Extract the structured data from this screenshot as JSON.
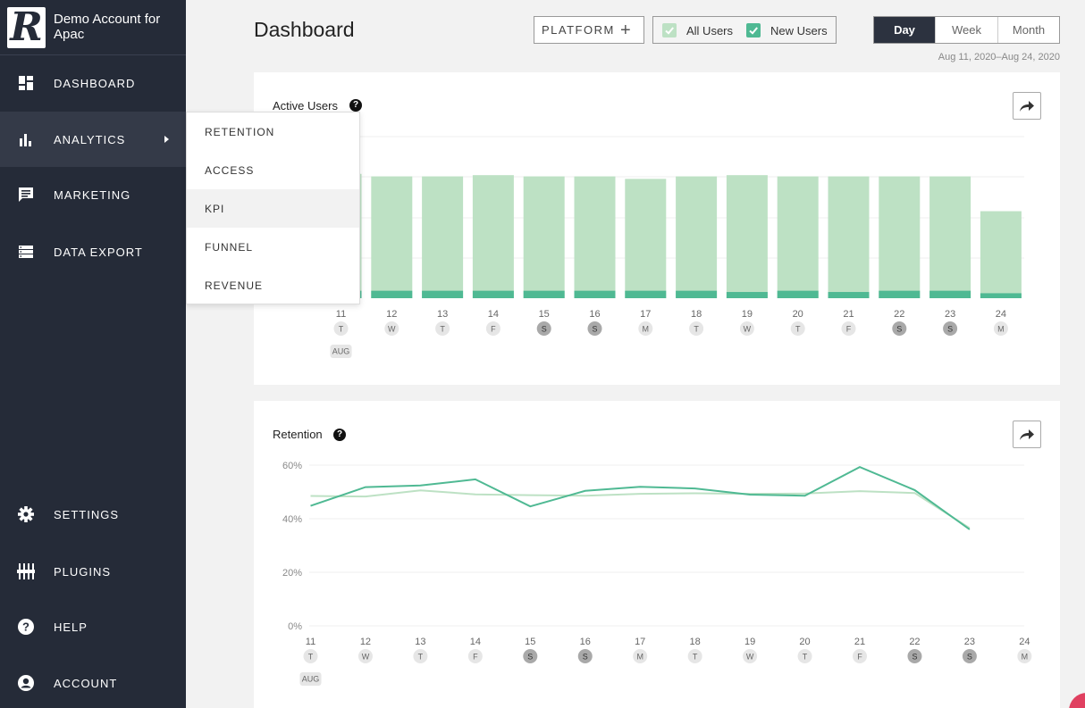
{
  "app": {
    "account_name": "Demo Account for Apac",
    "logo_letter": "R"
  },
  "sidebar": {
    "items": [
      {
        "label": "DASHBOARD",
        "icon": "dashboard-grid-icon"
      },
      {
        "label": "ANALYTICS",
        "icon": "bar-chart-icon",
        "active": true
      },
      {
        "label": "MARKETING",
        "icon": "message-icon"
      },
      {
        "label": "DATA EXPORT",
        "icon": "list-stack-icon"
      },
      {
        "label": "SETTINGS",
        "icon": "gear-icon"
      },
      {
        "label": "PLUGINS",
        "icon": "sliders-icon"
      },
      {
        "label": "HELP",
        "icon": "question-circle-icon"
      },
      {
        "label": "ACCOUNT",
        "icon": "user-circle-icon"
      }
    ]
  },
  "submenu": {
    "items": [
      "RETENTION",
      "ACCESS",
      "KPI",
      "FUNNEL",
      "REVENUE"
    ],
    "hovered": "KPI"
  },
  "header": {
    "title": "Dashboard",
    "platform_label": "PLATFORM",
    "legend": {
      "all_users": "All Users",
      "new_users": "New Users"
    },
    "range_options": [
      "Day",
      "Week",
      "Month"
    ],
    "range_selected": "Day",
    "date_range": "Aug 11, 2020–Aug 24, 2020"
  },
  "colors": {
    "sidebar_bg": "#252b38",
    "all_users": "#bde1c4",
    "new_users": "#4fb993",
    "weekend_pill": "#a9a9a9",
    "weekday_pill": "#e6e6e6"
  },
  "x_axis": {
    "days": [
      "11",
      "12",
      "13",
      "14",
      "15",
      "16",
      "17",
      "18",
      "19",
      "20",
      "21",
      "22",
      "23",
      "24"
    ],
    "weekdays": [
      "T",
      "W",
      "T",
      "F",
      "S",
      "S",
      "M",
      "T",
      "W",
      "T",
      "F",
      "S",
      "S",
      "M"
    ],
    "weekend_flags": [
      false,
      false,
      false,
      false,
      true,
      true,
      false,
      false,
      false,
      false,
      false,
      true,
      true,
      false
    ],
    "month_label": "AUG"
  },
  "charts": {
    "active_users": {
      "title": "Active Users"
    },
    "retention": {
      "title": "Retention",
      "y_ticks": [
        "60%",
        "40%",
        "20%",
        "0%"
      ]
    }
  },
  "chart_data": [
    {
      "type": "bar",
      "title": "Active Users",
      "categories": [
        "11",
        "12",
        "13",
        "14",
        "15",
        "16",
        "17",
        "18",
        "19",
        "20",
        "21",
        "22",
        "23",
        "24"
      ],
      "series": [
        {
          "name": "All Users",
          "values": [
            100,
            98,
            98,
            99,
            98,
            98,
            96,
            98,
            99,
            98,
            98,
            98,
            98,
            70
          ]
        },
        {
          "name": "New Users",
          "values": [
            6,
            6,
            6,
            6,
            6,
            6,
            6,
            6,
            5,
            6,
            5,
            6,
            6,
            4
          ]
        }
      ],
      "ylim": [
        0,
        130
      ]
    },
    {
      "type": "line",
      "title": "Retention",
      "categories": [
        "11",
        "12",
        "13",
        "14",
        "15",
        "16",
        "17",
        "18",
        "19",
        "20",
        "21",
        "22",
        "23",
        "24"
      ],
      "series": [
        {
          "name": "All Users",
          "values": [
            48.5,
            48.3,
            50.6,
            49.1,
            48.8,
            48.6,
            49.3,
            49.5,
            49.3,
            49.4,
            50.3,
            49.6,
            36.5,
            null
          ]
        },
        {
          "name": "New Users",
          "values": [
            44.8,
            51.8,
            52.4,
            54.7,
            44.6,
            50.4,
            51.9,
            51.3,
            49.0,
            48.6,
            59.3,
            50.7,
            36.0,
            null
          ]
        }
      ],
      "ylim": [
        0,
        60
      ],
      "y_ticks": [
        "0%",
        "20%",
        "40%",
        "60%"
      ]
    }
  ]
}
